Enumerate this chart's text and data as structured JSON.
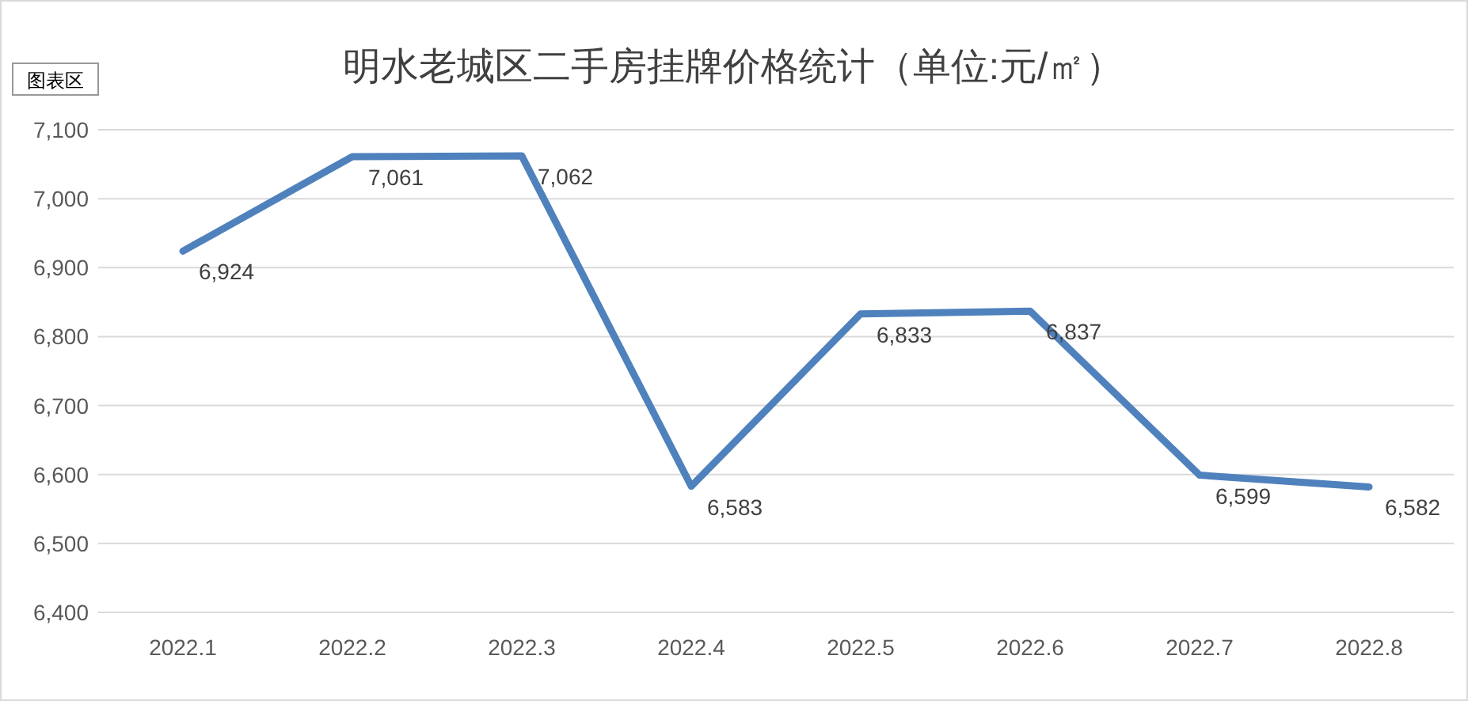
{
  "chart_data": {
    "type": "line",
    "title": "明水老城区二手房挂牌价格统计（单位:元/㎡）",
    "annotations": [
      "图表区"
    ],
    "categories": [
      "2022.1",
      "2022.2",
      "2022.3",
      "2022.4",
      "2022.5",
      "2022.6",
      "2022.7",
      "2022.8"
    ],
    "series": [
      {
        "color": "#4f81bd",
        "values": [
          6924,
          7061,
          7062,
          6583,
          6833,
          6837,
          6599,
          6582
        ],
        "value_labels": [
          "6,924",
          "7,061",
          "7,062",
          "6,583",
          "6,833",
          "6,837",
          "6,599",
          "6,582"
        ]
      }
    ],
    "ylim": [
      6400,
      7100
    ],
    "yticks": [
      {
        "value": 6400,
        "label": "6,400"
      },
      {
        "value": 6500,
        "label": "6,500"
      },
      {
        "value": 6600,
        "label": "6,600"
      },
      {
        "value": 6700,
        "label": "6,700"
      },
      {
        "value": 6800,
        "label": "6,800"
      },
      {
        "value": 6900,
        "label": "6,900"
      },
      {
        "value": 7000,
        "label": "7,000"
      },
      {
        "value": 7100,
        "label": "7,100"
      }
    ],
    "grid": "y",
    "marker": "none",
    "line_style": "solid"
  }
}
